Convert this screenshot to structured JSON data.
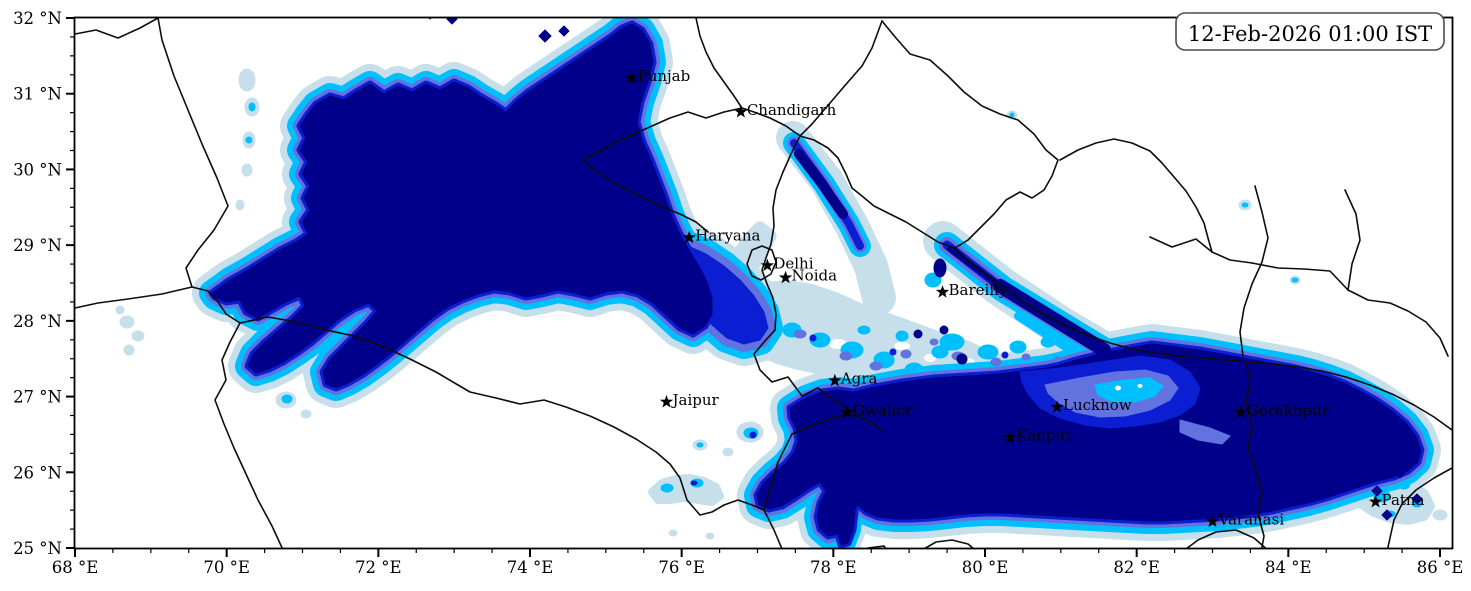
{
  "timestamp": "12-Feb-2026 01:00 IST",
  "map": {
    "extent": {
      "lon_min": 68,
      "lon_max": 86,
      "lat_min": 25,
      "lat_max": 32
    },
    "x_ticks": [
      {
        "value": 68,
        "label": "68 °E"
      },
      {
        "value": 70,
        "label": "70 °E"
      },
      {
        "value": 72,
        "label": "72 °E"
      },
      {
        "value": 74,
        "label": "74 °E"
      },
      {
        "value": 76,
        "label": "76 °E"
      },
      {
        "value": 78,
        "label": "78 °E"
      },
      {
        "value": 80,
        "label": "80 °E"
      },
      {
        "value": 82,
        "label": "82 °E"
      },
      {
        "value": 84,
        "label": "84 °E"
      },
      {
        "value": 86,
        "label": "86 °E"
      }
    ],
    "y_ticks": [
      {
        "value": 25,
        "label": "25 °N"
      },
      {
        "value": 26,
        "label": "26 °N"
      },
      {
        "value": 27,
        "label": "27 °N"
      },
      {
        "value": 28,
        "label": "28 °N"
      },
      {
        "value": 29,
        "label": "29 °N"
      },
      {
        "value": 30,
        "label": "30 °N"
      },
      {
        "value": 31,
        "label": "31 °N"
      },
      {
        "value": 32,
        "label": "32 °N"
      }
    ],
    "minor_step_x": 0.5,
    "minor_step_y": 0.25,
    "marker": "star",
    "cities": [
      {
        "name": "Punjab",
        "lon": 75.34,
        "lat": 31.21
      },
      {
        "name": "Chandigarh",
        "lon": 76.78,
        "lat": 30.76
      },
      {
        "name": "Haryana",
        "lon": 76.1,
        "lat": 29.1
      },
      {
        "name": "Delhi",
        "lon": 77.13,
        "lat": 28.73
      },
      {
        "name": "Noida",
        "lon": 77.37,
        "lat": 28.57
      },
      {
        "name": "Bareilly",
        "lon": 79.44,
        "lat": 28.38
      },
      {
        "name": "Jaipur",
        "lon": 75.8,
        "lat": 26.93
      },
      {
        "name": "Agra",
        "lon": 78.02,
        "lat": 27.21
      },
      {
        "name": "Gwalior",
        "lon": 78.18,
        "lat": 26.79
      },
      {
        "name": "Lucknow",
        "lon": 80.95,
        "lat": 26.86
      },
      {
        "name": "Kanpur",
        "lon": 80.33,
        "lat": 26.46
      },
      {
        "name": "Gorakhpur",
        "lon": 83.37,
        "lat": 26.79
      },
      {
        "name": "Varanasi",
        "lon": 83.0,
        "lat": 25.35
      },
      {
        "name": "Patna",
        "lon": 85.15,
        "lat": 25.61
      }
    ],
    "colors": {
      "level1_lightest": "#c6dfeb",
      "level2": "#00bfff",
      "level3": "#6273e0",
      "level4": "#0b1ed2",
      "level5_darkest": "#00008b",
      "border": "#0d0d0d",
      "frame": "#000000",
      "background": "#ffffff",
      "timestamp_border": "#4d4d4d",
      "text": "#000000"
    }
  },
  "chart_data": {
    "type": "filled-contour-map",
    "title": "",
    "annotation_box": "12-Feb-2026 01:00 IST",
    "projection": "lon/lat equal-aspect",
    "xlabel_ticks": [
      "68 °E",
      "70 °E",
      "72 °E",
      "74 °E",
      "76 °E",
      "78 °E",
      "80 °E",
      "82 °E",
      "84 °E",
      "86 °E"
    ],
    "ylabel_ticks": [
      "25 °N",
      "26 °N",
      "27 °N",
      "28 °N",
      "29 °N",
      "30 °N",
      "31 °N",
      "32 °N"
    ],
    "extent": [
      68,
      86,
      25,
      32
    ],
    "legend": "none shown",
    "fill_levels_light_to_dark": [
      "#c6dfeb",
      "#00bfff",
      "#6273e0",
      "#0b1ed2",
      "#00008b"
    ],
    "features": [
      "large dark-navy fog/cloud mass over Punjab-Haryana-NW Rajasthan approx 70.8-76.5E, 28.4-31.7N with SW tail to 69.8E,28.3N",
      "narrow navy streak NE of Delhi approx 77.5-78.3E, 29.1-30.4N",
      "diagonal navy band along Nepal border from 79.5E,30.0N to 81.6E,27.6N",
      "large dark-navy mass over UP-Bihar approx 77.6-85.8E, 25.4-27.4N",
      "mottled light-blue/cyan field between Delhi, Bareilly and Agra",
      "small scattered patches near 68.7E,27.9N; west of 71.5E; near Patna 85.3E,25.6N"
    ],
    "city_markers": [
      {
        "name": "Punjab",
        "lon": 75.34,
        "lat": 31.21
      },
      {
        "name": "Chandigarh",
        "lon": 76.78,
        "lat": 30.76
      },
      {
        "name": "Haryana",
        "lon": 76.1,
        "lat": 29.1
      },
      {
        "name": "Delhi",
        "lon": 77.13,
        "lat": 28.73
      },
      {
        "name": "Noida",
        "lon": 77.37,
        "lat": 28.57
      },
      {
        "name": "Bareilly",
        "lon": 79.44,
        "lat": 28.38
      },
      {
        "name": "Jaipur",
        "lon": 75.8,
        "lat": 26.93
      },
      {
        "name": "Agra",
        "lon": 78.02,
        "lat": 27.21
      },
      {
        "name": "Gwalior",
        "lon": 78.18,
        "lat": 26.79
      },
      {
        "name": "Lucknow",
        "lon": 80.95,
        "lat": 26.86
      },
      {
        "name": "Kanpur",
        "lon": 80.33,
        "lat": 26.46
      },
      {
        "name": "Gorakhpur",
        "lon": 83.37,
        "lat": 26.79
      },
      {
        "name": "Varanasi",
        "lon": 83.0,
        "lat": 25.35
      },
      {
        "name": "Patna",
        "lon": 85.15,
        "lat": 25.61
      }
    ]
  }
}
